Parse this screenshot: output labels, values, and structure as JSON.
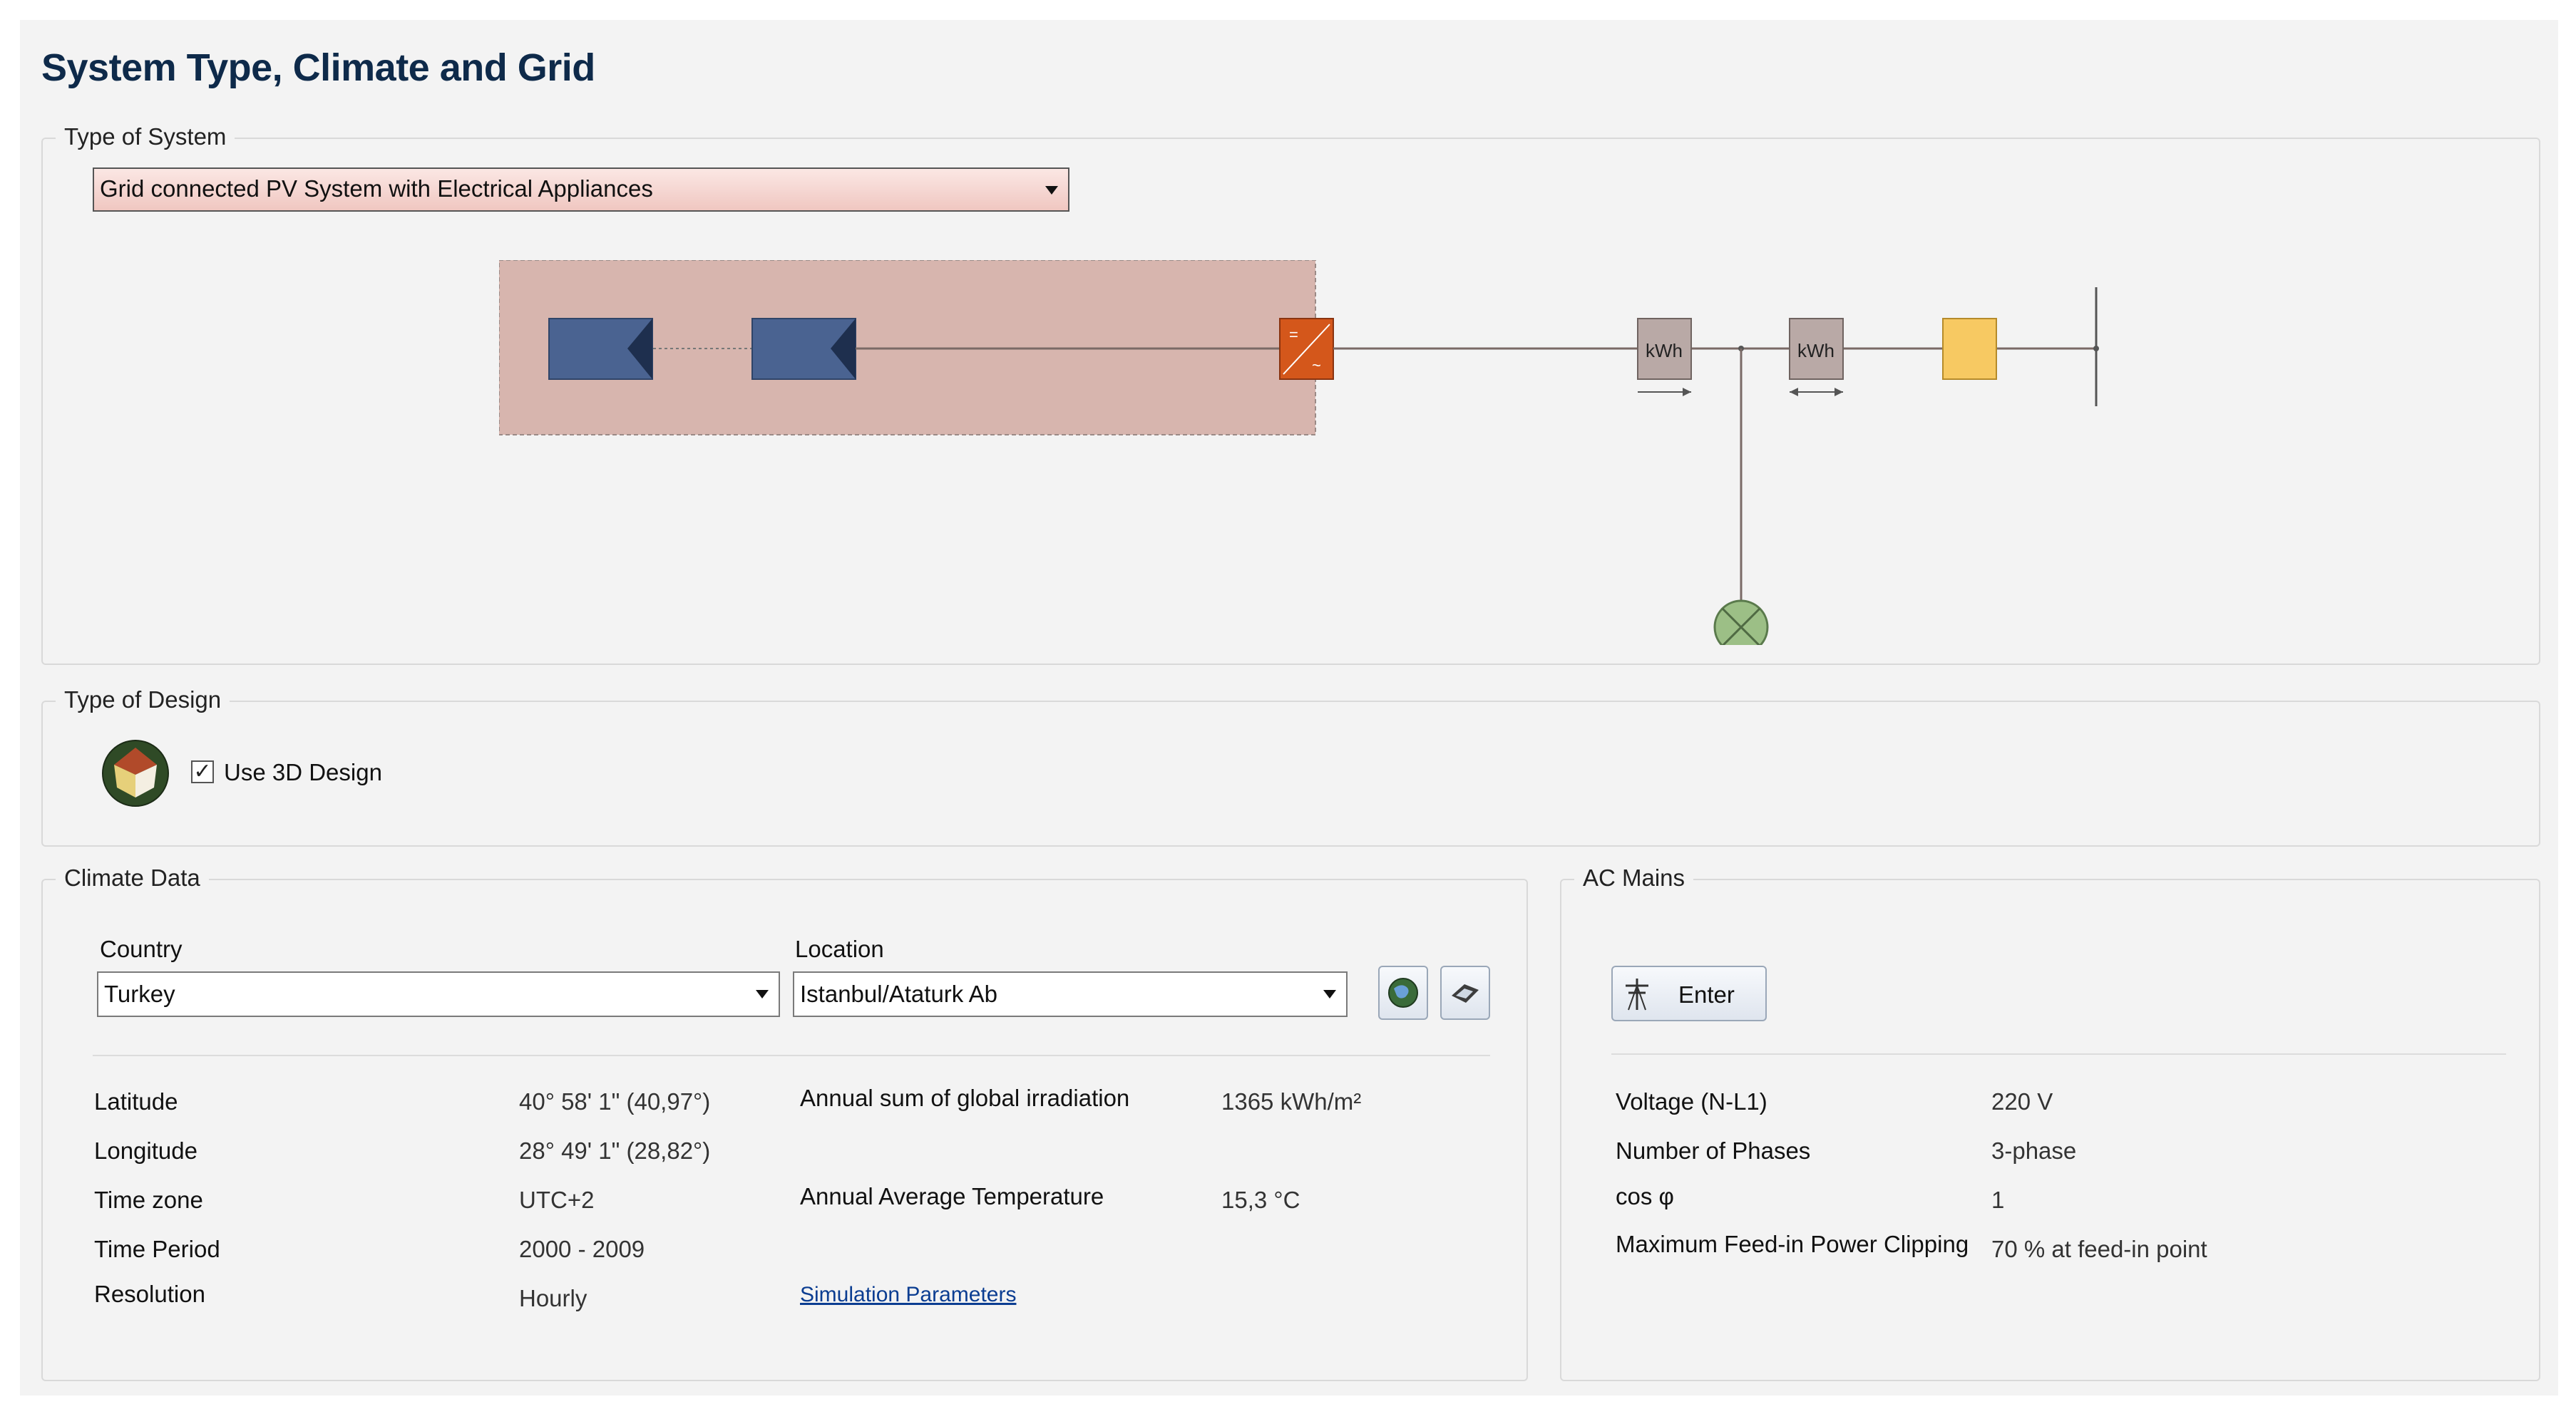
{
  "page": {
    "title": "System Type, Climate and Grid"
  },
  "type_of_system": {
    "legend": "Type of System",
    "selected": "Grid connected PV System with Electrical Appliances",
    "diagram": {
      "meter_label": "kWh"
    }
  },
  "type_of_design": {
    "legend": "Type of Design",
    "checkbox_label": "Use 3D Design",
    "checked": true,
    "check_mark": "✓"
  },
  "climate_data": {
    "legend": "Climate Data",
    "country_label": "Country",
    "country_value": "Turkey",
    "location_label": "Location",
    "location_value": "Istanbul/Ataturk Ab",
    "rows": [
      {
        "label": "Latitude",
        "value": "40° 58' 1\" (40,97°)"
      },
      {
        "label": "Longitude",
        "value": "28° 49' 1\" (28,82°)"
      },
      {
        "label": "Time zone",
        "value": "UTC+2"
      },
      {
        "label": "Time Period",
        "value": "2000 - 2009"
      },
      {
        "label": "Resolution",
        "value": "Hourly"
      }
    ],
    "irradiation_label": "Annual sum of global irradiation",
    "irradiation_value": "1365 kWh/m²",
    "temperature_label": "Annual Average Temperature",
    "temperature_value": "15,3 °C",
    "simulation_link": "Simulation Parameters"
  },
  "ac_mains": {
    "legend": "AC Mains",
    "enter_button": "Enter",
    "rows": [
      {
        "label": "Voltage (N-L1)",
        "value": "220 V"
      },
      {
        "label": "Number of Phases",
        "value": "3-phase"
      },
      {
        "label": "cos φ",
        "value": "1"
      },
      {
        "label": "Maximum Feed-in Power Clipping",
        "value": "70 % at feed-in point"
      }
    ]
  },
  "colors": {
    "title": "#0e2a4a",
    "pv_module": "#4a6391",
    "inverter": "#d4571b",
    "pv_area": "#d7b5ae",
    "meter": "#b9a9a6",
    "grid_box": "#f7c962",
    "load": "#9cbf86"
  }
}
